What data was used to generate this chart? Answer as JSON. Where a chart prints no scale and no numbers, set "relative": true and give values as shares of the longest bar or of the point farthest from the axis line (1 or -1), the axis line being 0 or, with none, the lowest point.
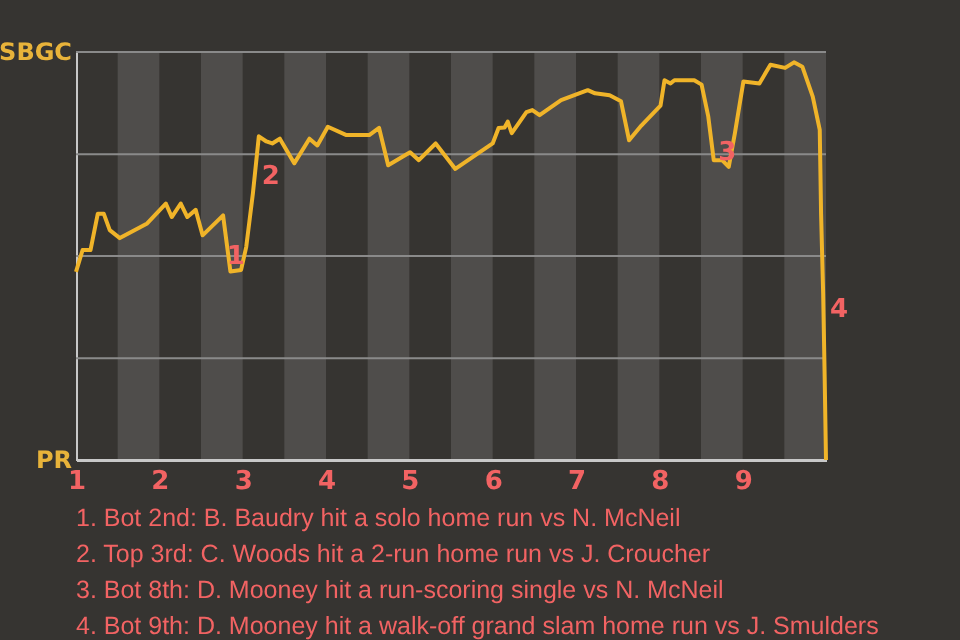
{
  "chart_data": {
    "type": "line",
    "relative": true,
    "x": [
      1.0,
      1.079,
      1.174,
      1.261,
      1.334,
      1.405,
      1.526,
      1.854,
      2.078,
      2.149,
      2.257,
      2.336,
      2.436,
      2.519,
      2.765,
      2.853,
      2.981,
      3.043,
      3.123,
      3.194,
      3.285,
      3.355,
      3.446,
      3.619,
      3.801,
      3.896,
      4.022,
      4.245,
      4.519,
      4.637,
      4.746,
      5.009,
      5.114,
      5.316,
      5.552,
      6.0,
      6.071,
      6.143,
      6.181,
      6.229,
      6.309,
      6.405,
      6.476,
      6.563,
      6.821,
      7.141,
      7.228,
      7.404,
      7.54,
      7.637,
      7.784,
      8.014,
      8.062,
      8.134,
      8.181,
      8.419,
      8.507,
      8.587,
      8.653,
      8.753,
      8.833,
      8.907,
      9.009,
      9.201,
      9.333,
      9.509,
      9.616,
      9.716,
      9.841,
      9.925,
      9.941,
      9.966,
      9.984,
      10.0
    ],
    "series": [
      {
        "color": "#f0b429",
        "values": [
          0.473,
          0.528,
          0.528,
          0.619,
          0.619,
          0.578,
          0.558,
          0.595,
          0.645,
          0.611,
          0.645,
          0.611,
          0.629,
          0.565,
          0.615,
          0.474,
          0.478,
          0.536,
          0.671,
          0.814,
          0.801,
          0.796,
          0.808,
          0.746,
          0.808,
          0.791,
          0.838,
          0.817,
          0.817,
          0.835,
          0.741,
          0.774,
          0.754,
          0.796,
          0.732,
          0.796,
          0.835,
          0.836,
          0.851,
          0.822,
          0.846,
          0.875,
          0.88,
          0.867,
          0.905,
          0.93,
          0.922,
          0.917,
          0.902,
          0.804,
          0.841,
          0.891,
          0.955,
          0.947,
          0.955,
          0.955,
          0.944,
          0.864,
          0.754,
          0.754,
          0.737,
          0.822,
          0.952,
          0.947,
          0.994,
          0.986,
          1,
          0.989,
          0.914,
          0.83,
          0.619,
          0.418,
          0.209,
          0
        ]
      }
    ],
    "xlim": [
      1,
      10
    ],
    "xticks": [
      1,
      2,
      3,
      4,
      5,
      6,
      7,
      8,
      9
    ],
    "marker": "none",
    "line_style": "solid",
    "ref_lines": [
      {
        "axis": "y",
        "value": 0,
        "label": "PR",
        "color": "#c8c8c8"
      },
      {
        "axis": "y",
        "value": 0.256,
        "color": "#8a8a8a"
      },
      {
        "axis": "y",
        "value": 0.513,
        "color": "#8a8a8a"
      },
      {
        "axis": "y",
        "value": 0.769,
        "color": "#8a8a8a"
      },
      {
        "axis": "y",
        "value": 1.026,
        "label": "SBGC",
        "color": "#8a8a8a"
      }
    ],
    "bands": [
      {
        "axis": "x",
        "from": 1.5,
        "to": 2,
        "color": "#4f4d4b"
      },
      {
        "axis": "x",
        "from": 2.5,
        "to": 3,
        "color": "#4f4d4b"
      },
      {
        "axis": "x",
        "from": 3.5,
        "to": 4,
        "color": "#4f4d4b"
      },
      {
        "axis": "x",
        "from": 4.5,
        "to": 5,
        "color": "#4f4d4b"
      },
      {
        "axis": "x",
        "from": 5.5,
        "to": 6,
        "color": "#4f4d4b"
      },
      {
        "axis": "x",
        "from": 6.5,
        "to": 7,
        "color": "#4f4d4b"
      },
      {
        "axis": "x",
        "from": 7.5,
        "to": 8,
        "color": "#4f4d4b"
      },
      {
        "axis": "x",
        "from": 8.5,
        "to": 9,
        "color": "#4f4d4b"
      },
      {
        "axis": "x",
        "from": 9.5,
        "to": 10,
        "color": "#4f4d4b"
      }
    ],
    "annotations": [
      {
        "text": "1",
        "x": 2.76,
        "y": 0.513
      },
      {
        "text": "2",
        "x": 3.18,
        "y": 0.714
      },
      {
        "text": "3",
        "x": 8.66,
        "y": 0.774
      },
      {
        "text": "4",
        "x": 10,
        "y": 0.379
      },
      "1. Bot 2nd: B. Baudry hit a solo home run vs N. McNeil",
      "2. Top 3rd: C. Woods hit a 2-run home run vs J. Croucher",
      "3. Bot 8th: D. Mooney hit a run-scoring single vs N. McNeil",
      "4. Bot 9th: D. Mooney hit a walk-off grand slam home run vs J. Smulders"
    ]
  }
}
